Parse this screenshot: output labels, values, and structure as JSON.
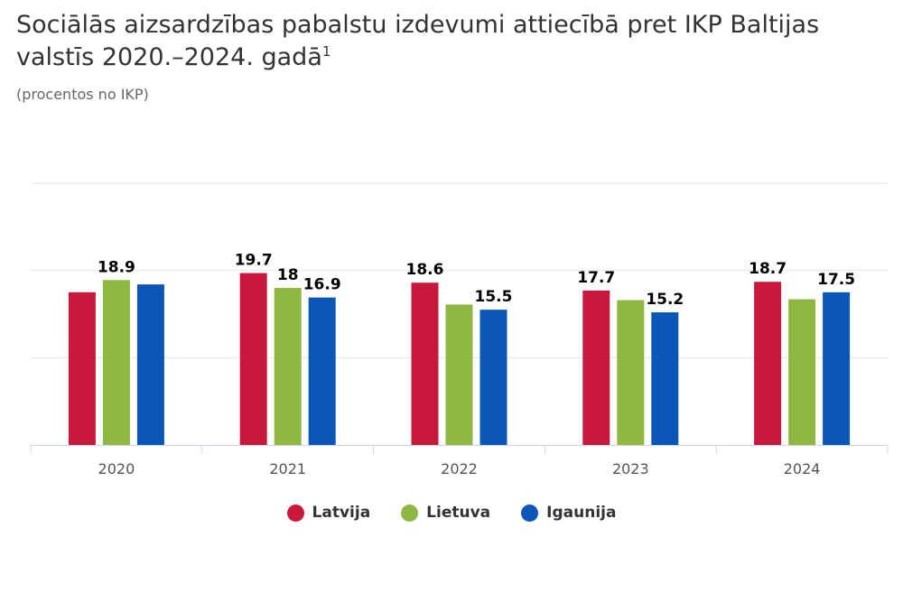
{
  "title_main": "Sociālās aizsardzības pabalstu izdevumi attiecībā pret IKP Baltijas valstīs 2020.–2024. gadā",
  "title_footnote": "1",
  "subtitle": "(procentos no IKP)",
  "chart_data": {
    "type": "bar",
    "title": "Sociālās aizsardzības pabalstu izdevumi attiecībā pret IKP Baltijas valstīs 2020.–2024. gadā",
    "subtitle": "(procentos no IKP)",
    "categories": [
      "2020",
      "2021",
      "2022",
      "2023",
      "2024"
    ],
    "ylim": [
      0,
      30
    ],
    "gridlines": [
      0,
      10,
      20,
      30
    ],
    "series": [
      {
        "name": "Latvija",
        "color": "#c8193c",
        "values": [
          17.5,
          19.7,
          18.6,
          17.7,
          18.7
        ],
        "labels": [
          null,
          "19.7",
          "18.6",
          "17.7",
          "18.7"
        ]
      },
      {
        "name": "Lietuva",
        "color": "#8fb843",
        "values": [
          18.9,
          18,
          16.1,
          16.6,
          16.7
        ],
        "labels": [
          "18.9",
          "18",
          null,
          null,
          null
        ]
      },
      {
        "name": "Igaunija",
        "color": "#0a57b8",
        "values": [
          18.4,
          16.9,
          15.5,
          15.2,
          17.5
        ],
        "labels": [
          null,
          "16.9",
          "15.5",
          "15.2",
          "17.5"
        ]
      }
    ]
  }
}
